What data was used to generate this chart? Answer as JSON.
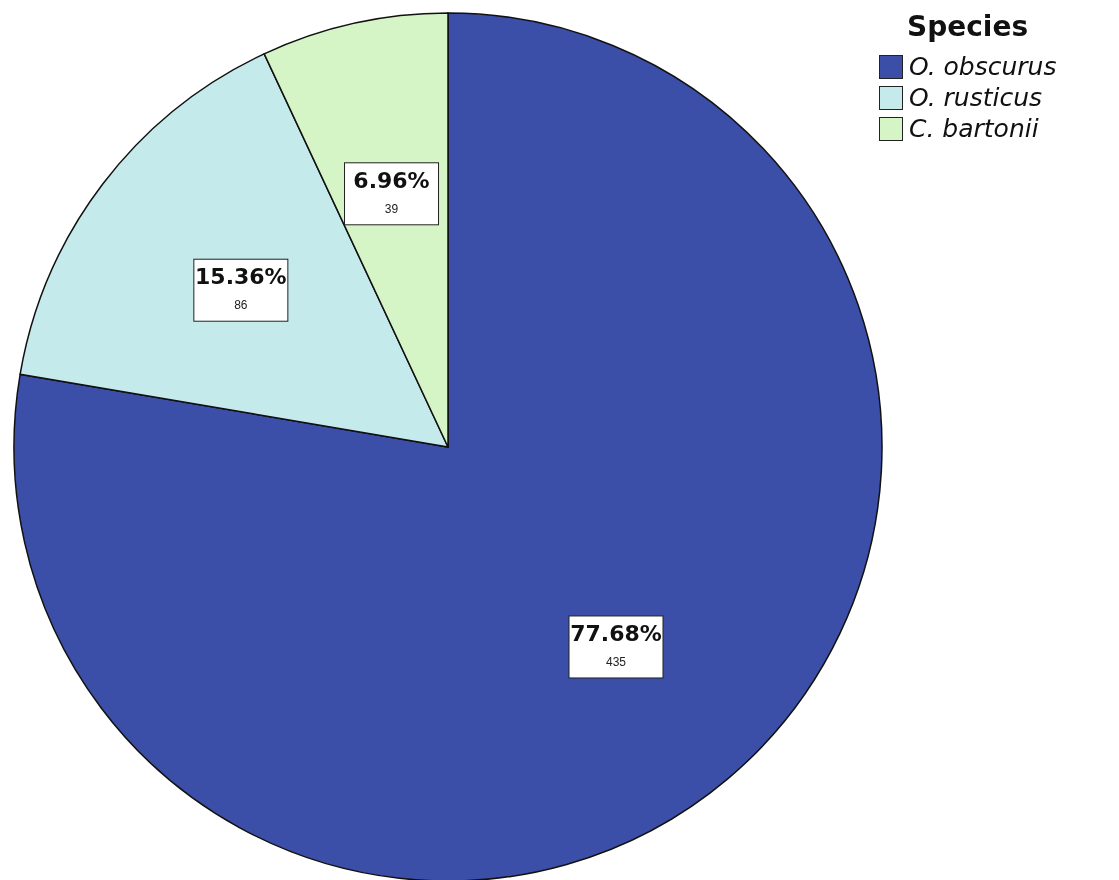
{
  "chart_data": {
    "type": "pie",
    "legend_title": "Species",
    "categories": [
      "O. obscurus",
      "O. rusticus",
      "C. bartonii"
    ],
    "values": [
      77.68,
      15.36,
      6.96
    ],
    "colors": [
      "#3c4fa8",
      "#c4eaec",
      "#d6f5c6"
    ],
    "value_labels": [
      "77.68%",
      "15.36%",
      "6.96%"
    ],
    "annotations": [
      {
        "text": "435",
        "x": "O. obscurus"
      },
      {
        "text": "86",
        "x": "O. rusticus"
      },
      {
        "text": "39",
        "x": "C. bartonii"
      }
    ],
    "legend": "top right"
  }
}
